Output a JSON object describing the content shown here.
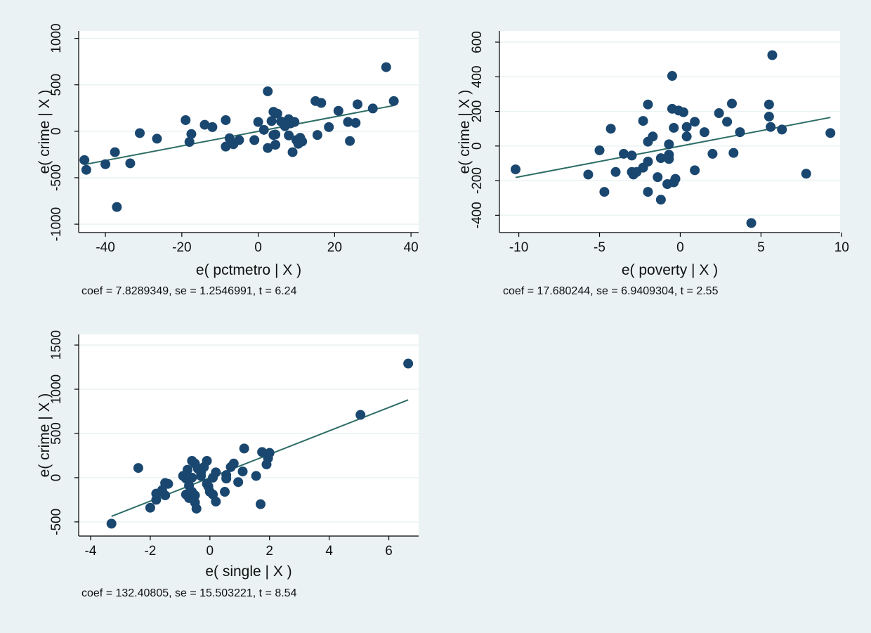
{
  "colors": {
    "background": "#eaf2f3",
    "plot_region": "#ffffff",
    "marker": "#1a476f",
    "fit_line": "#2d6d66",
    "grid": "#eaf2f3",
    "axis": "#000000"
  },
  "chart_data": [
    {
      "type": "scatter",
      "ylabel": "e( crime | X )",
      "xlabel": "e( pctmetro | X )",
      "note": "coef = 7.8289349, se = 1.2546991, t = 6.24",
      "xlim": [
        -47,
        42
      ],
      "ylim": [
        -1090,
        1080
      ],
      "xticks": [
        -40,
        -20,
        0,
        20,
        40
      ],
      "yticks": [
        -1000,
        -500,
        0,
        500,
        1000
      ],
      "ytick_labels": [
        "-1000",
        "-500",
        "0",
        "500",
        "1000"
      ],
      "grid": true,
      "fit_line": {
        "x": [
          -45.5,
          35.5
        ],
        "y": [
          -358,
          277
        ]
      },
      "points": [
        [
          -45.5,
          -310
        ],
        [
          -45,
          -415
        ],
        [
          -40,
          -355
        ],
        [
          -37.5,
          -225
        ],
        [
          -37,
          -815
        ],
        [
          -33.5,
          -345
        ],
        [
          -31,
          -20
        ],
        [
          -26.5,
          -80
        ],
        [
          -19,
          120
        ],
        [
          -18,
          -115
        ],
        [
          -17.5,
          -30
        ],
        [
          -14,
          70
        ],
        [
          -12,
          45
        ],
        [
          -8.5,
          120
        ],
        [
          -8.5,
          -165
        ],
        [
          -7.5,
          -75
        ],
        [
          -6.5,
          -140
        ],
        [
          -5,
          -95
        ],
        [
          -1,
          -95
        ],
        [
          0,
          100
        ],
        [
          1.5,
          15
        ],
        [
          2.5,
          -180
        ],
        [
          2.5,
          430
        ],
        [
          3.5,
          110
        ],
        [
          4,
          210
        ],
        [
          4,
          -40
        ],
        [
          4.5,
          -35
        ],
        [
          5,
          190
        ],
        [
          4.5,
          -145
        ],
        [
          6,
          105
        ],
        [
          7,
          55
        ],
        [
          7.5,
          95
        ],
        [
          8,
          130
        ],
        [
          8.5,
          85
        ],
        [
          8,
          -45
        ],
        [
          9,
          -225
        ],
        [
          9.5,
          100
        ],
        [
          10,
          -95
        ],
        [
          10.5,
          -135
        ],
        [
          11,
          -70
        ],
        [
          11.5,
          -110
        ],
        [
          15,
          325
        ],
        [
          15.5,
          -40
        ],
        [
          16.5,
          305
        ],
        [
          18.5,
          45
        ],
        [
          21,
          220
        ],
        [
          23.5,
          100
        ],
        [
          24,
          -105
        ],
        [
          25.5,
          90
        ],
        [
          26,
          290
        ],
        [
          30,
          245
        ],
        [
          33.5,
          690
        ],
        [
          35.5,
          325
        ]
      ]
    },
    {
      "type": "scatter",
      "ylabel": "e( crime | X )",
      "xlabel": "e( poverty | X )",
      "note": "coef = 17.680244, se = 6.9409304, t = 2.55",
      "xlim": [
        -11.2,
        9.9
      ],
      "ylim": [
        -500,
        665
      ],
      "xticks": [
        -10,
        -5,
        0,
        5,
        10
      ],
      "yticks": [
        -400,
        -200,
        0,
        200,
        400,
        600
      ],
      "ytick_labels": [
        "-400",
        "-200",
        "0",
        "200",
        "400",
        "600"
      ],
      "grid": true,
      "fit_line": {
        "x": [
          -10.2,
          9.3
        ],
        "y": [
          -182,
          165
        ]
      },
      "points": [
        [
          -10.2,
          -135
        ],
        [
          -5.7,
          -165
        ],
        [
          -5,
          -25
        ],
        [
          -4.7,
          -265
        ],
        [
          -4.3,
          100
        ],
        [
          -4.0,
          -150
        ],
        [
          -3.5,
          -45
        ],
        [
          -3.0,
          -55
        ],
        [
          -3.0,
          -150
        ],
        [
          -2.9,
          -165
        ],
        [
          -2.7,
          -150
        ],
        [
          -2.3,
          145
        ],
        [
          -2.3,
          -125
        ],
        [
          -2.0,
          240
        ],
        [
          -2.0,
          25
        ],
        [
          -2.0,
          -90
        ],
        [
          -2.0,
          -265
        ],
        [
          -1.7,
          55
        ],
        [
          -1.4,
          -180
        ],
        [
          -1.2,
          -310
        ],
        [
          -1.2,
          -70
        ],
        [
          -0.8,
          -220
        ],
        [
          -0.7,
          10
        ],
        [
          -0.7,
          -50
        ],
        [
          -0.7,
          -75
        ],
        [
          -0.5,
          215
        ],
        [
          -0.5,
          405
        ],
        [
          -0.4,
          105
        ],
        [
          -0.4,
          -210
        ],
        [
          -0.3,
          -190
        ],
        [
          -0.1,
          205
        ],
        [
          0.2,
          195
        ],
        [
          0.4,
          110
        ],
        [
          0.4,
          55
        ],
        [
          0.9,
          140
        ],
        [
          0.9,
          -140
        ],
        [
          1.5,
          80
        ],
        [
          2.0,
          -45
        ],
        [
          2.4,
          190
        ],
        [
          2.9,
          140
        ],
        [
          3.2,
          245
        ],
        [
          3.3,
          -40
        ],
        [
          3.7,
          80
        ],
        [
          4.4,
          -445
        ],
        [
          5.5,
          240
        ],
        [
          5.5,
          170
        ],
        [
          5.6,
          110
        ],
        [
          5.7,
          525
        ],
        [
          6.3,
          95
        ],
        [
          7.8,
          -160
        ],
        [
          9.3,
          75
        ]
      ]
    },
    {
      "type": "scatter",
      "ylabel": "e( crime | X )",
      "xlabel": "e( single | X )",
      "note": "coef = 132.40805, se = 15.503221, t = 8.54",
      "xlim": [
        -4.4,
        7.0
      ],
      "ylim": [
        -660,
        1620
      ],
      "xticks": [
        -4,
        -2,
        0,
        2,
        4,
        6
      ],
      "yticks": [
        -500,
        0,
        500,
        1000,
        1500
      ],
      "ytick_labels": [
        "-500",
        "0",
        "500",
        "1000",
        "1500"
      ],
      "grid": true,
      "fit_line": {
        "x": [
          -3.3,
          6.65
        ],
        "y": [
          -437,
          880
        ]
      },
      "points": [
        [
          -3.3,
          -520
        ],
        [
          -2.4,
          110
        ],
        [
          -2.0,
          -340
        ],
        [
          -1.8,
          -180
        ],
        [
          -1.8,
          -250
        ],
        [
          -1.6,
          -140
        ],
        [
          -1.5,
          -60
        ],
        [
          -1.5,
          -200
        ],
        [
          -1.4,
          -70
        ],
        [
          -0.9,
          20
        ],
        [
          -0.8,
          -10
        ],
        [
          -0.8,
          -190
        ],
        [
          -0.7,
          -90
        ],
        [
          -0.7,
          -230
        ],
        [
          -0.6,
          190
        ],
        [
          -0.6,
          0
        ],
        [
          -0.6,
          -160
        ],
        [
          -0.5,
          160
        ],
        [
          -0.5,
          -200
        ],
        [
          -0.5,
          -280
        ],
        [
          -0.45,
          -350
        ],
        [
          -0.4,
          100
        ],
        [
          -0.3,
          60
        ],
        [
          -0.2,
          120
        ],
        [
          -0.1,
          190
        ],
        [
          -0.1,
          -70
        ],
        [
          0,
          -160
        ],
        [
          0.1,
          -190
        ],
        [
          0.1,
          0
        ],
        [
          0.2,
          60
        ],
        [
          0.2,
          -270
        ],
        [
          0.5,
          -160
        ],
        [
          0.55,
          30
        ],
        [
          0.55,
          -10
        ],
        [
          0.7,
          120
        ],
        [
          0.8,
          160
        ],
        [
          0.95,
          -50
        ],
        [
          1.1,
          70
        ],
        [
          1.15,
          330
        ],
        [
          1.55,
          20
        ],
        [
          1.7,
          -300
        ],
        [
          1.75,
          290
        ],
        [
          1.9,
          150
        ],
        [
          1.95,
          220
        ],
        [
          2.0,
          280
        ],
        [
          5.05,
          710
        ],
        [
          6.65,
          1290
        ],
        [
          -0.75,
          90
        ],
        [
          -0.3,
          20
        ],
        [
          -0.05,
          -100
        ]
      ]
    }
  ]
}
